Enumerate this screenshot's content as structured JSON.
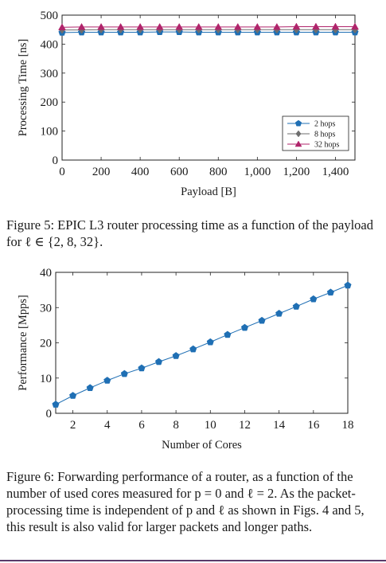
{
  "figure5": {
    "caption": "Figure 5: EPIC L3 router processing time as a function of the payload for ℓ ∈ {2, 8, 32}.",
    "chart_data": {
      "type": "line",
      "xlabel": "Payload [B]",
      "ylabel": "Processing Time [ns]",
      "xlim": [
        0,
        1500
      ],
      "ylim": [
        0,
        500
      ],
      "xticks": [
        0,
        200,
        400,
        600,
        800,
        1000,
        1200,
        1400
      ],
      "xtick_labels": [
        "0",
        "200",
        "400",
        "600",
        "800",
        "1,000",
        "1,200",
        "1,400"
      ],
      "yticks": [
        0,
        100,
        200,
        300,
        400,
        500
      ],
      "ytick_labels": [
        "0",
        "100",
        "200",
        "300",
        "400",
        "500"
      ],
      "legend_position": "lower-right",
      "x": [
        0,
        100,
        200,
        300,
        400,
        500,
        600,
        700,
        800,
        900,
        1000,
        1100,
        1200,
        1300,
        1400,
        1500
      ],
      "series": [
        {
          "name": "2 hops",
          "color": "#1f6fb4",
          "marker": "pentagon",
          "values": [
            440,
            441,
            441,
            441,
            441,
            442,
            442,
            441,
            441,
            441,
            441,
            441,
            441,
            441,
            441,
            441
          ]
        },
        {
          "name": "8 hops",
          "color": "#6e6e6e",
          "marker": "diamond",
          "values": [
            449,
            449,
            450,
            450,
            450,
            450,
            450,
            450,
            450,
            450,
            450,
            450,
            450,
            450,
            450,
            450
          ]
        },
        {
          "name": "32 hops",
          "color": "#b0246b",
          "marker": "triangle",
          "values": [
            458,
            459,
            459,
            459,
            459,
            459,
            459,
            459,
            459,
            459,
            459,
            459,
            460,
            460,
            460,
            460
          ]
        }
      ]
    }
  },
  "figure6": {
    "caption": "Figure 6: Forwarding performance of a router, as a function of the number of used cores measured for p = 0 and ℓ = 2. As the packet-processing time is independent of p and ℓ as shown in Figs. 4 and 5, this result is also valid for larger packets and longer paths.",
    "chart_data": {
      "type": "line",
      "xlabel": "Number of Cores",
      "ylabel": "Performance [Mpps]",
      "xlim": [
        1,
        18
      ],
      "ylim": [
        0,
        40
      ],
      "xticks": [
        2,
        4,
        6,
        8,
        10,
        12,
        14,
        16,
        18
      ],
      "xtick_labels": [
        "2",
        "4",
        "6",
        "8",
        "10",
        "12",
        "14",
        "16",
        "18"
      ],
      "yticks": [
        0,
        10,
        20,
        30,
        40
      ],
      "ytick_labels": [
        "0",
        "10",
        "20",
        "30",
        "40"
      ],
      "x": [
        1,
        2,
        3,
        4,
        5,
        6,
        7,
        8,
        9,
        10,
        11,
        12,
        13,
        14,
        15,
        16,
        17,
        18
      ],
      "series": [
        {
          "color": "#1f6fb4",
          "marker": "pentagon",
          "values": [
            2.5,
            5.0,
            7.2,
            9.3,
            11.2,
            12.8,
            14.6,
            16.3,
            18.2,
            20.2,
            22.3,
            24.3,
            26.3,
            28.3,
            30.3,
            32.4,
            34.3,
            36.3
          ]
        }
      ]
    }
  }
}
